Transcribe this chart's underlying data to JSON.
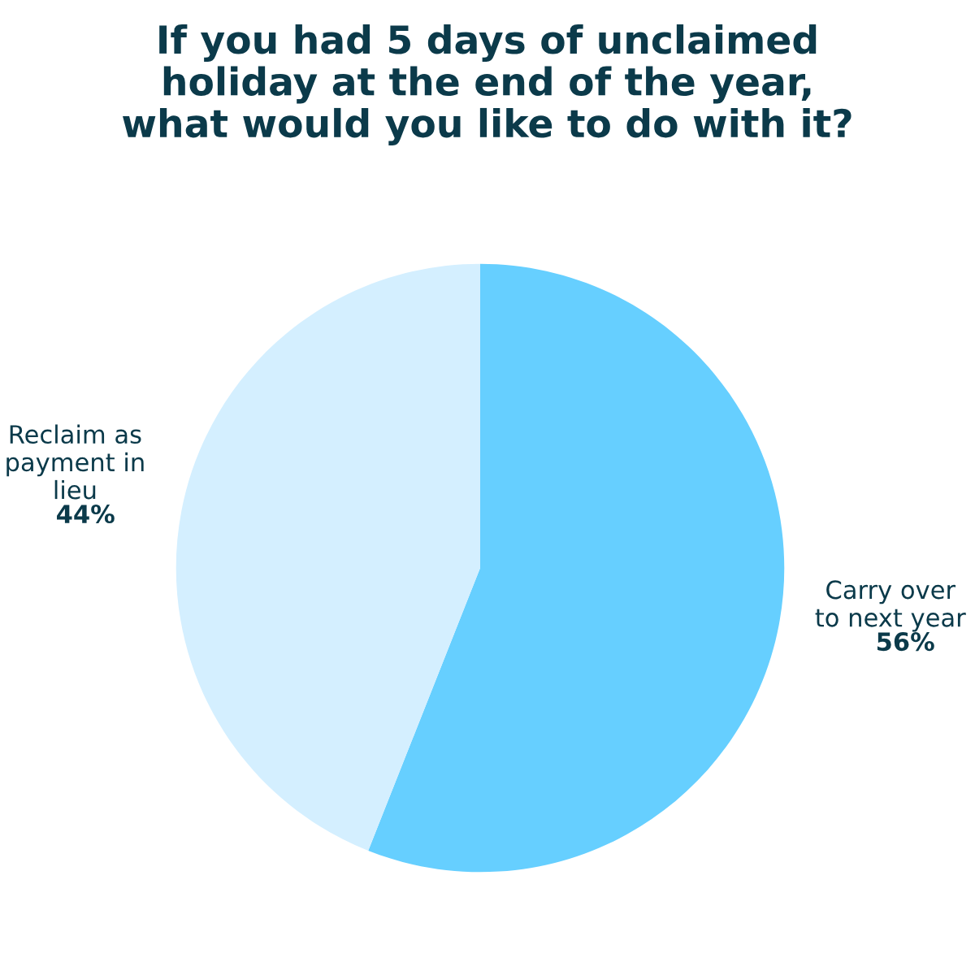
{
  "chart_data": {
    "type": "pie",
    "title": "If you had 5 days of unclaimed\nholiday at the end of the year,\nwhat would you like to do with it?",
    "categories": [
      "Carry over\nto next year",
      "Reclaim as\npayment in\nlieu"
    ],
    "values": [
      56,
      44
    ],
    "value_labels": [
      "56%",
      "44%"
    ],
    "colors": [
      "#66cfff",
      "#d4efff"
    ],
    "legend": false
  }
}
